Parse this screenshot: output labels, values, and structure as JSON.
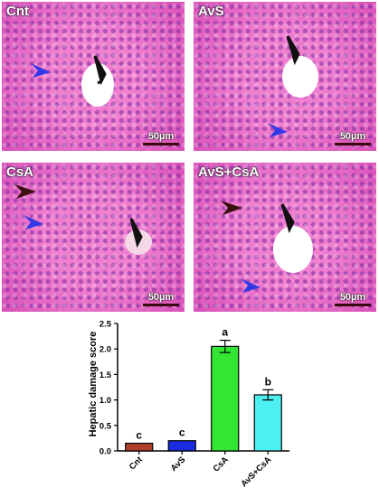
{
  "panels": [
    {
      "id": "cnt",
      "label": "Cnt",
      "scale": "50µm"
    },
    {
      "id": "avs",
      "label": "AvS",
      "scale": "50µm"
    },
    {
      "id": "csa",
      "label": "CsA",
      "scale": "50µm"
    },
    {
      "id": "avscsa",
      "label": "AvS+CsA",
      "scale": "50µm"
    }
  ],
  "chart_data": {
    "type": "bar",
    "ylabel": "Hepatic damage score",
    "ylim": [
      0,
      2.5
    ],
    "yticks": [
      "0.0",
      "0.5",
      "1.0",
      "1.5",
      "2.0",
      "2.5"
    ],
    "categories": [
      "Cnt",
      "AvS",
      "CsA",
      "AvS+CsA"
    ],
    "values": [
      0.15,
      0.2,
      2.05,
      1.1
    ],
    "errors": [
      0.0,
      0.0,
      0.12,
      0.1
    ],
    "significance_labels": [
      "c",
      "c",
      "a",
      "b"
    ],
    "colors": [
      "#b0402e",
      "#1a2be0",
      "#33e633",
      "#4df0f0"
    ]
  }
}
